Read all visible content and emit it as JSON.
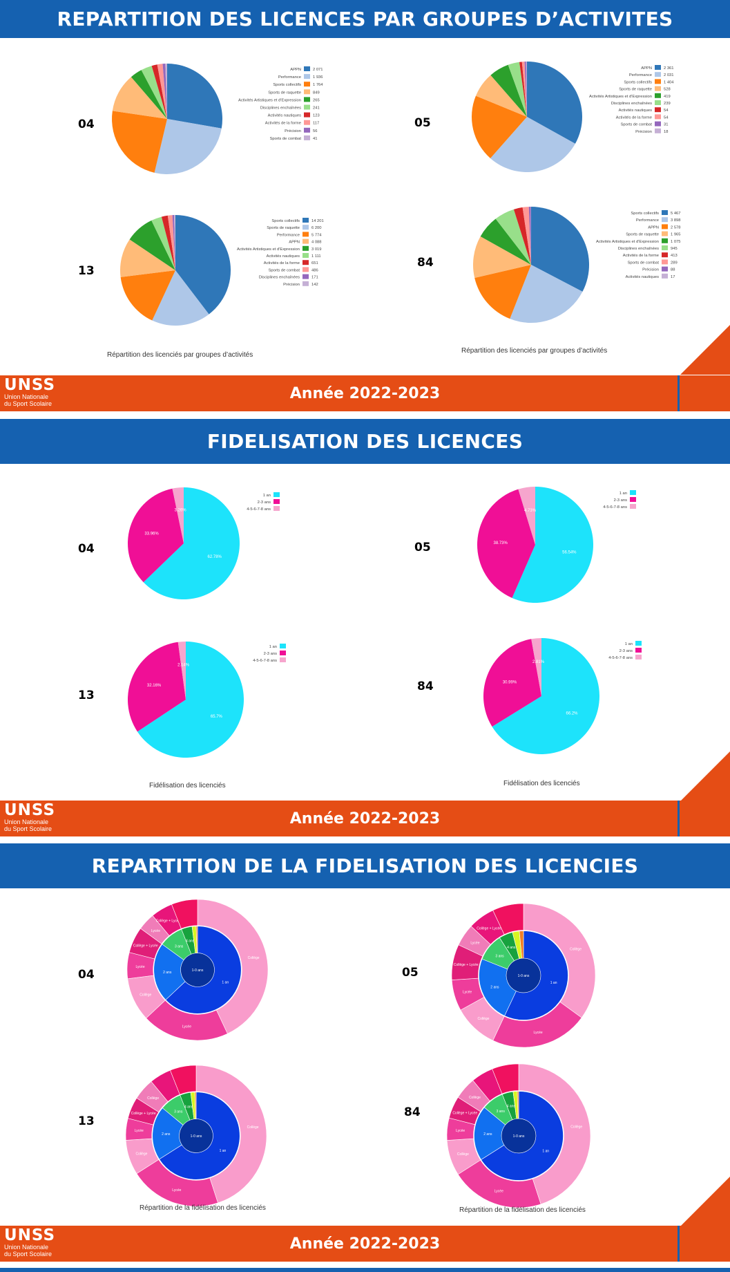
{
  "sections": [
    {
      "title": "REPARTITION DES LICENCES PAR GROUPES D’ACTIVITES",
      "footer": "Année 2022-2023",
      "caption_left": "Répartition des licenciés par groupes d’activités",
      "caption_right": "Répartition des licenciés par groupes d’activités"
    },
    {
      "title": "FIDELISATION DES LICENCES",
      "footer": "Année 2022-2023",
      "caption_left": "Fidélisation des licenciés",
      "caption_right": "Fidélisation des licenciés"
    },
    {
      "title": "REPARTITION DE LA FIDELISATION DES LICENCIES",
      "footer": "Année 2022-2023",
      "caption_left": "Répartition de la fidélisation des licenciés",
      "caption_right": "Répartition de la fidélisation des licenciés"
    }
  ],
  "logo": {
    "word": "UNSS",
    "line1": "Union Nationale",
    "line2": "du Sport Scolaire"
  },
  "codes": [
    "04",
    "05",
    "13",
    "84"
  ],
  "colors": {
    "header": "#1561b0",
    "footer": "#e54d15"
  },
  "chart_data": [
    {
      "type": "pie",
      "id": "act04",
      "departement": "04",
      "legend": [
        "APPN",
        "Performance",
        "Sports collectifs",
        "Sports de raquette",
        "Activités Artistiques et d'Expression",
        "Disciplines enchaînées",
        "Activités nautiques",
        "Activités de la forme",
        "Précision",
        "Sports de combat"
      ],
      "labels": [
        "2 071",
        "1 936",
        "1 764",
        "849",
        "265",
        "241",
        "123",
        "117",
        "56",
        "41"
      ],
      "values": [
        2071,
        1936,
        1764,
        849,
        265,
        241,
        123,
        117,
        56,
        41
      ],
      "colors": [
        "#2f77b8",
        "#aec7e8",
        "#ff7f0e",
        "#ffbb78",
        "#2ca02c",
        "#98df8a",
        "#d62728",
        "#ff9896",
        "#9467bd",
        "#c5b0d5"
      ]
    },
    {
      "type": "pie",
      "id": "act05",
      "departement": "05",
      "legend": [
        "APPN",
        "Performance",
        "Sports collectifs",
        "Sports de raquette",
        "Activités Artistiques et d'Expression",
        "Disciplines enchaînées",
        "Activités nautiques",
        "Activités de la forme",
        "Sports de combat",
        "Précision"
      ],
      "labels": [
        "2 361",
        "2 031",
        "1 404",
        "528",
        "419",
        "239",
        "54",
        "54",
        "31",
        "18"
      ],
      "values": [
        2361,
        2031,
        1404,
        528,
        419,
        239,
        54,
        54,
        31,
        18
      ],
      "colors": [
        "#2f77b8",
        "#aec7e8",
        "#ff7f0e",
        "#ffbb78",
        "#2ca02c",
        "#98df8a",
        "#d62728",
        "#ff9896",
        "#9467bd",
        "#c5b0d5"
      ]
    },
    {
      "type": "pie",
      "id": "act13",
      "departement": "13",
      "legend": [
        "Sports collectifs",
        "Sports de raquette",
        "Performance",
        "APPN",
        "Activités Artistiques et d'Expression",
        "Activités nautiques",
        "Activités de la forme",
        "Sports de combat",
        "Disciplines enchaînées",
        "Précision"
      ],
      "labels": [
        "14 201",
        "6 200",
        "5 774",
        "4 088",
        "3 019",
        "1 111",
        "651",
        "486",
        "171",
        "142"
      ],
      "values": [
        14201,
        6200,
        5774,
        4088,
        3019,
        1111,
        651,
        486,
        171,
        142
      ],
      "colors": [
        "#2f77b8",
        "#aec7e8",
        "#ff7f0e",
        "#ffbb78",
        "#2ca02c",
        "#98df8a",
        "#d62728",
        "#ff9896",
        "#9467bd",
        "#c5b0d5"
      ]
    },
    {
      "type": "pie",
      "id": "act84",
      "departement": "84",
      "legend": [
        "Sports collectifs",
        "Performance",
        "APPN",
        "Sports de raquette",
        "Activités Artistiques et d'Expression",
        "Disciplines enchaînées",
        "Activités de la forme",
        "Sports de combat",
        "Précision",
        "Activités nautiques"
      ],
      "labels": [
        "5 467",
        "3 898",
        "2 578",
        "1 965",
        "1 075",
        "945",
        "413",
        "289",
        "88",
        "17"
      ],
      "values": [
        5467,
        3898,
        2578,
        1965,
        1075,
        945,
        413,
        289,
        88,
        17
      ],
      "colors": [
        "#2f77b8",
        "#aec7e8",
        "#ff7f0e",
        "#ffbb78",
        "#2ca02c",
        "#98df8a",
        "#d62728",
        "#ff9896",
        "#9467bd",
        "#c5b0d5"
      ]
    },
    {
      "type": "pie",
      "id": "fid04",
      "departement": "04",
      "legend": [
        "1 an",
        "2-3 ans",
        "4-5-6-7-8 ans"
      ],
      "values": [
        62.78,
        33.96,
        3.26
      ],
      "labels": [
        "62.78%",
        "33.96%",
        "3.26%"
      ],
      "colors": [
        "#1de3fb",
        "#f00f96",
        "#f6a5cd"
      ]
    },
    {
      "type": "pie",
      "id": "fid05",
      "departement": "05",
      "legend": [
        "1 an",
        "2-3 ans",
        "4-5-6-7-8 ans"
      ],
      "values": [
        56.54,
        38.73,
        4.73
      ],
      "labels": [
        "56.54%",
        "38.73%",
        "4.73%"
      ],
      "colors": [
        "#1de3fb",
        "#f00f96",
        "#f6a5cd"
      ]
    },
    {
      "type": "pie",
      "id": "fid13",
      "departement": "13",
      "legend": [
        "1 an",
        "2-3 ans",
        "4-5-6-7-8 ans"
      ],
      "values": [
        65.7,
        32.16,
        2.14
      ],
      "labels": [
        "65.7%",
        "32.16%",
        "2.14%"
      ],
      "colors": [
        "#1de3fb",
        "#f00f96",
        "#f6a5cd"
      ]
    },
    {
      "type": "pie",
      "id": "fid84",
      "departement": "84",
      "legend": [
        "1 an",
        "2-3 ans",
        "4-5-6-7-8 ans"
      ],
      "values": [
        66.2,
        30.99,
        2.81
      ],
      "labels": [
        "66.2%",
        "30.99%",
        "2.81%"
      ],
      "colors": [
        "#1de3fb",
        "#f00f96",
        "#f6a5cd"
      ]
    },
    {
      "type": "sunburst",
      "id": "sun04",
      "departement": "04",
      "center": "1-0 ans",
      "inner": [
        {
          "label": "1 an",
          "value": 0.63,
          "color": "#0a3de0"
        },
        {
          "label": "2 ans",
          "value": 0.22,
          "color": "#1170f0"
        },
        {
          "label": "3 ans",
          "value": 0.09,
          "color": "#3ccc6a"
        },
        {
          "label": "4 ans",
          "value": 0.04,
          "color": "#17a23e"
        },
        {
          "label": "",
          "value": 0.015,
          "color": "#d8f522"
        },
        {
          "label": "",
          "value": 0.005,
          "color": "#f07f24"
        }
      ],
      "outer": [
        {
          "label": "Collège",
          "value": 0.43,
          "color": "#f99ccb"
        },
        {
          "label": "Lycée",
          "value": 0.2,
          "color": "#ee3d9b"
        },
        {
          "label": "Collège",
          "value": 0.1,
          "color": "#f99ccb"
        },
        {
          "label": "Lycée",
          "value": 0.06,
          "color": "#ee3d9b"
        },
        {
          "label": "Collège + Lycée",
          "value": 0.06,
          "color": "#e01e78"
        },
        {
          "label": "Lycée",
          "value": 0.04,
          "color": "#f07cb8"
        },
        {
          "label": "Collège + Lycée",
          "value": 0.05,
          "color": "#e8157a"
        },
        {
          "label": "",
          "value": 0.06,
          "color": "#f0115f"
        }
      ]
    },
    {
      "type": "sunburst",
      "id": "sun05",
      "departement": "05",
      "center": "1-0 ans",
      "inner": [
        {
          "label": "1 an",
          "value": 0.57,
          "color": "#0a3de0"
        },
        {
          "label": "2 ans",
          "value": 0.24,
          "color": "#1170f0"
        },
        {
          "label": "3 ans",
          "value": 0.1,
          "color": "#3ccc6a"
        },
        {
          "label": "4 ans",
          "value": 0.05,
          "color": "#17a23e"
        },
        {
          "label": "",
          "value": 0.025,
          "color": "#d8f522"
        },
        {
          "label": "",
          "value": 0.015,
          "color": "#f07f24"
        }
      ],
      "outer": [
        {
          "label": "Collège",
          "value": 0.35,
          "color": "#f99ccb"
        },
        {
          "label": "Lycée",
          "value": 0.22,
          "color": "#ee3d9b"
        },
        {
          "label": "Collège",
          "value": 0.1,
          "color": "#f99ccb"
        },
        {
          "label": "Lycée",
          "value": 0.07,
          "color": "#ee3d9b"
        },
        {
          "label": "Collège + Lycée",
          "value": 0.08,
          "color": "#e01e78"
        },
        {
          "label": "Lycée",
          "value": 0.05,
          "color": "#f07cb8"
        },
        {
          "label": "Collège + Lycée",
          "value": 0.06,
          "color": "#e8157a"
        },
        {
          "label": "",
          "value": 0.07,
          "color": "#f0115f"
        }
      ]
    },
    {
      "type": "sunburst",
      "id": "sun13",
      "departement": "13",
      "center": "1-0 ans",
      "inner": [
        {
          "label": "1 an",
          "value": 0.66,
          "color": "#0a3de0"
        },
        {
          "label": "2 ans",
          "value": 0.2,
          "color": "#1170f0"
        },
        {
          "label": "3 ans",
          "value": 0.08,
          "color": "#3ccc6a"
        },
        {
          "label": "4 ans",
          "value": 0.04,
          "color": "#17a23e"
        },
        {
          "label": "",
          "value": 0.015,
          "color": "#d8f522"
        },
        {
          "label": "",
          "value": 0.005,
          "color": "#f07f24"
        }
      ],
      "outer": [
        {
          "label": "Collège",
          "value": 0.45,
          "color": "#f99ccb"
        },
        {
          "label": "Lycée",
          "value": 0.21,
          "color": "#ee3d9b"
        },
        {
          "label": "Collège",
          "value": 0.08,
          "color": "#f99ccb"
        },
        {
          "label": "Lycée",
          "value": 0.05,
          "color": "#ee3d9b"
        },
        {
          "label": "Collège + Lycée",
          "value": 0.05,
          "color": "#e01e78"
        },
        {
          "label": "Collège",
          "value": 0.05,
          "color": "#f07cb8"
        },
        {
          "label": "",
          "value": 0.05,
          "color": "#e8157a"
        },
        {
          "label": "",
          "value": 0.06,
          "color": "#f0115f"
        }
      ]
    },
    {
      "type": "sunburst",
      "id": "sun84",
      "departement": "84",
      "center": "1-0 ans",
      "inner": [
        {
          "label": "1 an",
          "value": 0.66,
          "color": "#0a3de0"
        },
        {
          "label": "2 ans",
          "value": 0.2,
          "color": "#1170f0"
        },
        {
          "label": "3 ans",
          "value": 0.08,
          "color": "#3ccc6a"
        },
        {
          "label": "4 ans",
          "value": 0.04,
          "color": "#17a23e"
        },
        {
          "label": "",
          "value": 0.015,
          "color": "#d8f522"
        },
        {
          "label": "",
          "value": 0.005,
          "color": "#f07f24"
        }
      ],
      "outer": [
        {
          "label": "Collège",
          "value": 0.45,
          "color": "#f99ccb"
        },
        {
          "label": "Lycée",
          "value": 0.21,
          "color": "#ee3d9b"
        },
        {
          "label": "Collège",
          "value": 0.08,
          "color": "#f99ccb"
        },
        {
          "label": "Lycée",
          "value": 0.05,
          "color": "#ee3d9b"
        },
        {
          "label": "Collège + Lycée",
          "value": 0.05,
          "color": "#e01e78"
        },
        {
          "label": "Collège",
          "value": 0.05,
          "color": "#f07cb8"
        },
        {
          "label": "",
          "value": 0.05,
          "color": "#e8157a"
        },
        {
          "label": "",
          "value": 0.06,
          "color": "#f0115f"
        }
      ]
    }
  ]
}
